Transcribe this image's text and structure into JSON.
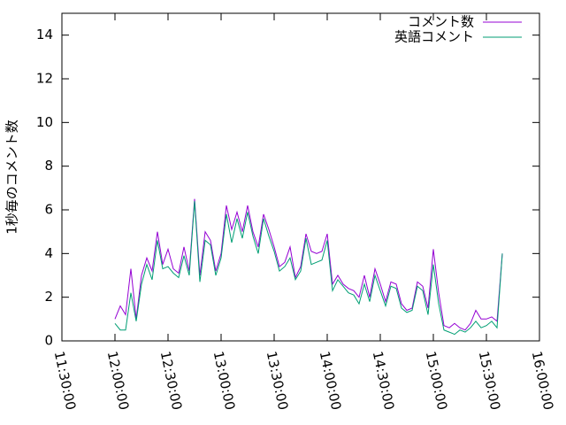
{
  "chart_data": {
    "type": "line",
    "ylabel": "1秒毎のコメント数",
    "x": [
      "12:00:00",
      "12:03:00",
      "12:06:00",
      "12:09:00",
      "12:12:00",
      "12:15:00",
      "12:18:00",
      "12:21:00",
      "12:24:00",
      "12:27:00",
      "12:30:00",
      "12:33:00",
      "12:36:00",
      "12:39:00",
      "12:42:00",
      "12:45:00",
      "12:48:00",
      "12:51:00",
      "12:54:00",
      "12:57:00",
      "13:00:00",
      "13:03:00",
      "13:06:00",
      "13:09:00",
      "13:12:00",
      "13:15:00",
      "13:18:00",
      "13:21:00",
      "13:24:00",
      "13:27:00",
      "13:30:00",
      "13:33:00",
      "13:36:00",
      "13:39:00",
      "13:42:00",
      "13:45:00",
      "13:48:00",
      "13:51:00",
      "13:54:00",
      "13:57:00",
      "14:00:00",
      "14:03:00",
      "14:06:00",
      "14:09:00",
      "14:12:00",
      "14:15:00",
      "14:18:00",
      "14:21:00",
      "14:24:00",
      "14:27:00",
      "14:30:00",
      "14:33:00",
      "14:36:00",
      "14:39:00",
      "14:42:00",
      "14:45:00",
      "14:48:00",
      "14:51:00",
      "14:54:00",
      "14:57:00",
      "15:00:00",
      "15:03:00",
      "15:06:00",
      "15:09:00",
      "15:12:00",
      "15:15:00",
      "15:18:00",
      "15:21:00",
      "15:24:00",
      "15:27:00",
      "15:30:00",
      "15:33:00",
      "15:36:00",
      "15:39:00"
    ],
    "series": [
      {
        "name": "コメント数",
        "color": "#9400d3",
        "values": [
          1.0,
          1.6,
          1.2,
          3.3,
          1.0,
          3.0,
          3.8,
          3.2,
          5.0,
          3.5,
          4.2,
          3.3,
          3.1,
          4.3,
          3.2,
          6.5,
          3.0,
          5.0,
          4.6,
          3.2,
          4.0,
          6.2,
          5.1,
          5.9,
          5.0,
          6.2,
          5.0,
          4.3,
          5.8,
          5.1,
          4.3,
          3.4,
          3.6,
          4.3,
          2.9,
          3.4,
          4.9,
          4.1,
          4.0,
          4.1,
          4.9,
          2.6,
          3.0,
          2.6,
          2.4,
          2.3,
          2.0,
          3.0,
          2.0,
          3.3,
          2.6,
          1.8,
          2.7,
          2.6,
          1.7,
          1.4,
          1.5,
          2.7,
          2.5,
          1.5,
          4.2,
          2.2,
          0.7,
          0.6,
          0.8,
          0.6,
          0.5,
          0.8,
          1.4,
          1.0,
          1.0,
          1.1,
          0.9,
          4.0
        ]
      },
      {
        "name": "英語コメント",
        "color": "#009e73",
        "values": [
          0.8,
          0.5,
          0.5,
          2.2,
          0.9,
          2.6,
          3.5,
          2.8,
          4.6,
          3.3,
          3.4,
          3.1,
          2.9,
          3.9,
          3.0,
          6.4,
          2.7,
          4.6,
          4.4,
          3.0,
          3.8,
          5.8,
          4.5,
          5.6,
          4.7,
          5.9,
          4.8,
          4.0,
          5.6,
          4.8,
          4.1,
          3.2,
          3.4,
          3.8,
          2.8,
          3.2,
          4.7,
          3.5,
          3.6,
          3.7,
          4.6,
          2.3,
          2.8,
          2.5,
          2.2,
          2.1,
          1.7,
          2.6,
          1.8,
          3.0,
          2.3,
          1.6,
          2.5,
          2.4,
          1.5,
          1.3,
          1.4,
          2.5,
          2.3,
          1.2,
          3.5,
          1.7,
          0.5,
          0.4,
          0.3,
          0.5,
          0.4,
          0.6,
          0.9,
          0.6,
          0.7,
          0.9,
          0.6,
          4.0
        ]
      }
    ],
    "xlim": [
      "11:30:00",
      "16:00:00"
    ],
    "xticks": [
      "11:30:00",
      "12:00:00",
      "12:30:00",
      "13:00:00",
      "13:30:00",
      "14:00:00",
      "14:30:00",
      "15:00:00",
      "15:30:00",
      "16:00:00"
    ],
    "ylim": [
      0,
      15
    ],
    "yticks": [
      0,
      2,
      4,
      6,
      8,
      10,
      12,
      14
    ],
    "grid": false,
    "legend": "top-right"
  }
}
